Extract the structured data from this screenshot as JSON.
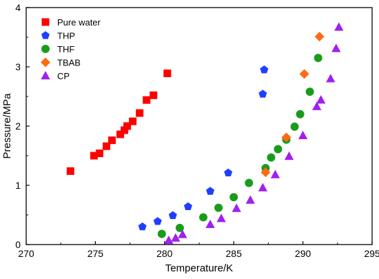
{
  "chart_data": {
    "type": "scatter",
    "title": "",
    "xlabel": "Temperature/K",
    "ylabel": "Pressure/MPa",
    "xlim": [
      270,
      295
    ],
    "ylim": [
      0,
      4
    ],
    "x_ticks": [
      "270",
      "275",
      "280",
      "285",
      "290",
      "295"
    ],
    "y_ticks": [
      "0",
      "1",
      "2",
      "3",
      "4"
    ],
    "grid": false,
    "legend_position": "top-left",
    "series": [
      {
        "name": "Pure water",
        "marker": "square",
        "color": "#ff0000",
        "points": [
          [
            273.2,
            1.24
          ],
          [
            274.9,
            1.5
          ],
          [
            275.3,
            1.54
          ],
          [
            275.8,
            1.66
          ],
          [
            276.2,
            1.76
          ],
          [
            276.8,
            1.86
          ],
          [
            277.1,
            1.93
          ],
          [
            277.3,
            2.0
          ],
          [
            277.7,
            2.08
          ],
          [
            278.2,
            2.22
          ],
          [
            278.7,
            2.44
          ],
          [
            279.2,
            2.52
          ],
          [
            280.2,
            2.89
          ]
        ]
      },
      {
        "name": "THP",
        "marker": "pentagon",
        "color": "#1f3fff",
        "points": [
          [
            278.4,
            0.3
          ],
          [
            279.5,
            0.39
          ],
          [
            280.6,
            0.49
          ],
          [
            281.7,
            0.64
          ],
          [
            283.3,
            0.9
          ],
          [
            284.6,
            1.21
          ],
          [
            287.1,
            2.54
          ],
          [
            287.2,
            2.95
          ]
        ]
      },
      {
        "name": "THF",
        "marker": "circle",
        "color": "#1a9c1a",
        "points": [
          [
            279.8,
            0.18
          ],
          [
            281.1,
            0.28
          ],
          [
            282.8,
            0.46
          ],
          [
            283.9,
            0.62
          ],
          [
            285.0,
            0.8
          ],
          [
            286.1,
            1.04
          ],
          [
            287.3,
            1.29
          ],
          [
            287.7,
            1.47
          ],
          [
            288.2,
            1.61
          ],
          [
            288.8,
            1.77
          ],
          [
            289.4,
            1.99
          ],
          [
            289.8,
            2.2
          ],
          [
            290.5,
            2.58
          ],
          [
            291.1,
            3.15
          ]
        ]
      },
      {
        "name": "TBAB",
        "marker": "diamond",
        "color": "#ff6a13",
        "points": [
          [
            287.3,
            1.22
          ],
          [
            288.8,
            1.81
          ],
          [
            290.1,
            2.88
          ],
          [
            291.2,
            3.51
          ]
        ]
      },
      {
        "name": "CP",
        "marker": "triangle",
        "color": "#a020f0",
        "points": [
          [
            280.3,
            0.07
          ],
          [
            280.8,
            0.11
          ],
          [
            281.3,
            0.17
          ],
          [
            283.3,
            0.34
          ],
          [
            284.1,
            0.44
          ],
          [
            285.2,
            0.61
          ],
          [
            286.2,
            0.75
          ],
          [
            287.1,
            0.96
          ],
          [
            288.0,
            1.18
          ],
          [
            289.0,
            1.49
          ],
          [
            290.0,
            1.84
          ],
          [
            291.0,
            2.33
          ],
          [
            291.3,
            2.44
          ],
          [
            292.0,
            2.8
          ],
          [
            292.4,
            3.31
          ],
          [
            292.6,
            3.67
          ]
        ]
      }
    ]
  }
}
